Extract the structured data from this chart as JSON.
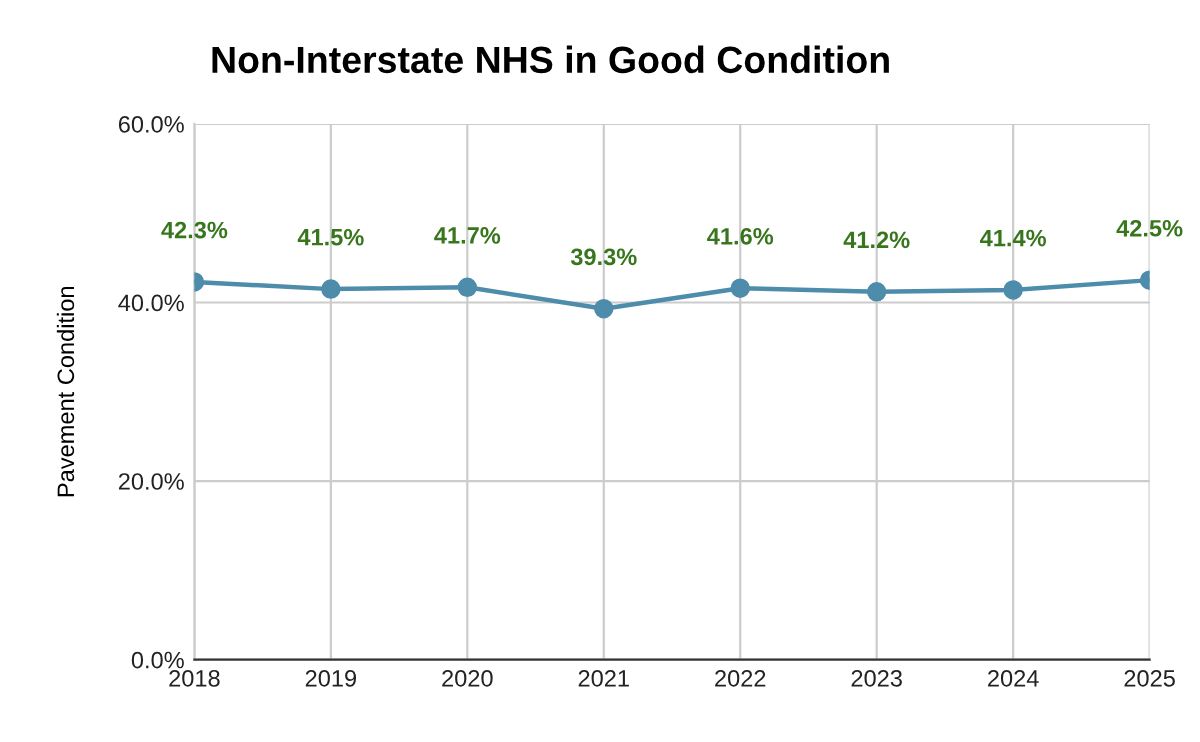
{
  "chart_data": {
    "type": "line",
    "title": "Non-Interstate NHS in Good Condition",
    "ylabel": "Pavement Condition",
    "categories": [
      "2018",
      "2019",
      "2020",
      "2021",
      "2022",
      "2023",
      "2024",
      "2025"
    ],
    "series": [
      {
        "color": "#4d8cab",
        "values": [
          42.3,
          41.5,
          41.7,
          39.3,
          41.6,
          41.2,
          41.4,
          42.5
        ],
        "value_labels": [
          "42.3%",
          "41.5%",
          "41.7%",
          "39.3%",
          "41.6%",
          "41.2%",
          "41.4%",
          "42.5%"
        ]
      }
    ],
    "ylim": [
      0,
      60
    ],
    "yticks": [
      {
        "value": 0,
        "label": "0.0%"
      },
      {
        "value": 20,
        "label": "20.0%"
      },
      {
        "value": 40,
        "label": "40.0%"
      },
      {
        "value": 60,
        "label": "60.0%"
      }
    ],
    "grid": true,
    "marker": "circle",
    "line_style": "solid",
    "legend": false
  }
}
